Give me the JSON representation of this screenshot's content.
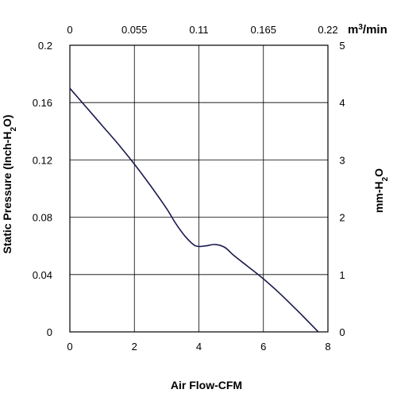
{
  "chart_data": {
    "type": "line",
    "xlabel": "Air Flow-CFM",
    "ylabel": "Static Pressure (Inch-H",
    "ylabel_sub": "2",
    "ylabel_end": "O)",
    "y2label": "mm-H",
    "y2label_sub": "2",
    "y2label_end": "O",
    "x2label": "m",
    "x2label_sup": "3",
    "x2label_end": "/min",
    "xlim": [
      0,
      8
    ],
    "ylim": [
      0,
      0.2
    ],
    "x_ticks": [
      "0",
      "2",
      "4",
      "6",
      "8"
    ],
    "y_ticks": [
      "0",
      "0.04",
      "0.08",
      "0.12",
      "0.16",
      "0.2"
    ],
    "x2_ticks": [
      "0",
      "0.055",
      "0.11",
      "0.165",
      "0.22"
    ],
    "y2_ticks": [
      "0",
      "1",
      "2",
      "3",
      "4",
      "5"
    ],
    "grid": true,
    "line_color": "#1a1a4d",
    "grid_color": "#000000",
    "series": [
      {
        "x": [
          0,
          0.5,
          1.0,
          1.5,
          2.0,
          2.5,
          3.0,
          3.3,
          3.6,
          3.9,
          4.2,
          4.5,
          4.8,
          5.1,
          5.5,
          6.0,
          6.5,
          7.0,
          7.4,
          7.7
        ],
        "y": [
          0.17,
          0.157,
          0.144,
          0.131,
          0.117,
          0.102,
          0.086,
          0.075,
          0.066,
          0.06,
          0.06,
          0.061,
          0.059,
          0.053,
          0.046,
          0.037,
          0.027,
          0.016,
          0.007,
          0.0
        ]
      }
    ]
  }
}
